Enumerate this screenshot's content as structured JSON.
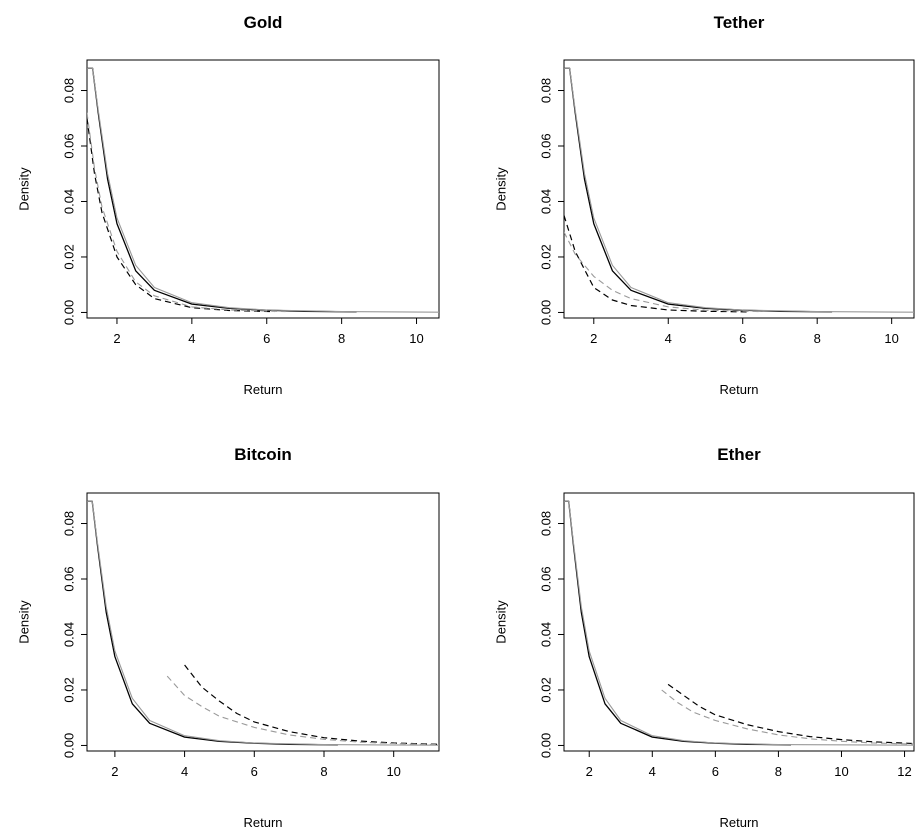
{
  "chart_data": [
    {
      "type": "line",
      "title": "Gold",
      "xlabel": "Return",
      "ylabel": "Density",
      "xlim": [
        1.2,
        10.6
      ],
      "ylim": [
        -0.002,
        0.091
      ],
      "xticks": [
        "2",
        "4",
        "6",
        "8",
        "10"
      ],
      "yticks": [
        "0.00",
        "0.02",
        "0.04",
        "0.06",
        "0.08"
      ],
      "grid": false,
      "series": [
        {
          "style": "solid-black",
          "x": [
            1.2,
            1.35,
            1.5,
            1.75,
            2,
            2.5,
            3,
            4,
            5,
            6,
            7,
            8.4
          ],
          "y": [
            0.088,
            0.088,
            0.072,
            0.048,
            0.032,
            0.015,
            0.008,
            0.003,
            0.0015,
            0.0008,
            0.0004,
            0.0002
          ]
        },
        {
          "style": "solid-gray",
          "x": [
            1.2,
            1.35,
            1.5,
            1.75,
            2,
            2.5,
            3,
            4,
            5,
            6,
            8,
            10.6
          ],
          "y": [
            0.088,
            0.088,
            0.073,
            0.05,
            0.034,
            0.017,
            0.009,
            0.0035,
            0.0017,
            0.0009,
            0.0003,
            0.0001
          ]
        },
        {
          "style": "dashed-black",
          "x": [
            1.2,
            1.4,
            1.6,
            2,
            2.5,
            3,
            4,
            5,
            6.2
          ],
          "y": [
            0.07,
            0.05,
            0.036,
            0.02,
            0.01,
            0.005,
            0.0017,
            0.0007,
            0.0003
          ]
        },
        {
          "style": "dashed-gray",
          "x": [
            1.2,
            1.4,
            1.6,
            2,
            2.5,
            3,
            4,
            5,
            6.5
          ],
          "y": [
            0.072,
            0.052,
            0.038,
            0.022,
            0.011,
            0.006,
            0.002,
            0.0009,
            0.0003
          ]
        }
      ]
    },
    {
      "type": "line",
      "title": "Tether",
      "xlabel": "Return",
      "ylabel": "Density",
      "xlim": [
        1.2,
        10.6
      ],
      "ylim": [
        -0.002,
        0.091
      ],
      "xticks": [
        "2",
        "4",
        "6",
        "8",
        "10"
      ],
      "yticks": [
        "0.00",
        "0.02",
        "0.04",
        "0.06",
        "0.08"
      ],
      "grid": false,
      "series": [
        {
          "style": "solid-black",
          "x": [
            1.2,
            1.35,
            1.5,
            1.75,
            2,
            2.5,
            3,
            4,
            5,
            6,
            7,
            8.4
          ],
          "y": [
            0.088,
            0.088,
            0.072,
            0.048,
            0.032,
            0.015,
            0.008,
            0.003,
            0.0015,
            0.0008,
            0.0004,
            0.0002
          ]
        },
        {
          "style": "solid-gray",
          "x": [
            1.2,
            1.35,
            1.5,
            1.75,
            2,
            2.5,
            3,
            4,
            5,
            6,
            8,
            10.6
          ],
          "y": [
            0.088,
            0.088,
            0.073,
            0.05,
            0.034,
            0.017,
            0.009,
            0.0035,
            0.0017,
            0.0009,
            0.0003,
            0.0001
          ]
        },
        {
          "style": "dashed-black",
          "x": [
            1.2,
            1.5,
            2,
            2.5,
            3,
            4,
            5,
            6.2
          ],
          "y": [
            0.035,
            0.022,
            0.009,
            0.0045,
            0.0025,
            0.0009,
            0.0004,
            0.0002
          ]
        },
        {
          "style": "dashed-gray",
          "x": [
            1.2,
            1.5,
            2,
            2.5,
            3,
            4,
            5,
            6.5
          ],
          "y": [
            0.029,
            0.021,
            0.013,
            0.008,
            0.005,
            0.002,
            0.0008,
            0.0003
          ]
        }
      ]
    },
    {
      "type": "line",
      "title": "Bitcoin",
      "xlabel": "Return",
      "ylabel": "Density",
      "xlim": [
        1.2,
        11.3
      ],
      "ylim": [
        -0.002,
        0.091
      ],
      "xticks": [
        "2",
        "4",
        "6",
        "8",
        "10"
      ],
      "yticks": [
        "0.00",
        "0.02",
        "0.04",
        "0.06",
        "0.08"
      ],
      "grid": false,
      "series": [
        {
          "style": "solid-black",
          "x": [
            1.2,
            1.35,
            1.5,
            1.75,
            2,
            2.5,
            3,
            4,
            5,
            6,
            7,
            8.4
          ],
          "y": [
            0.088,
            0.088,
            0.072,
            0.048,
            0.032,
            0.015,
            0.008,
            0.003,
            0.0015,
            0.0008,
            0.0004,
            0.0002
          ]
        },
        {
          "style": "solid-gray",
          "x": [
            1.2,
            1.35,
            1.5,
            1.75,
            2,
            2.5,
            3,
            4,
            5,
            6,
            8,
            11.3
          ],
          "y": [
            0.088,
            0.088,
            0.073,
            0.05,
            0.034,
            0.017,
            0.009,
            0.0035,
            0.0017,
            0.0009,
            0.0003,
            0.0001
          ]
        },
        {
          "style": "dashed-black",
          "x": [
            4.0,
            4.5,
            5,
            5.5,
            6,
            7,
            8,
            9,
            10,
            11.3
          ],
          "y": [
            0.029,
            0.021,
            0.016,
            0.0115,
            0.0085,
            0.005,
            0.0028,
            0.0016,
            0.0009,
            0.0004
          ]
        },
        {
          "style": "dashed-gray",
          "x": [
            3.5,
            4.0,
            4.5,
            5,
            6,
            7,
            8,
            9,
            10,
            11.3
          ],
          "y": [
            0.025,
            0.018,
            0.014,
            0.0105,
            0.0065,
            0.0038,
            0.0022,
            0.0012,
            0.0007,
            0.0003
          ]
        }
      ]
    },
    {
      "type": "line",
      "title": "Ether",
      "xlabel": "Return",
      "ylabel": "Density",
      "xlim": [
        1.2,
        12.3
      ],
      "ylim": [
        -0.002,
        0.091
      ],
      "xticks": [
        "2",
        "4",
        "6",
        "8",
        "10",
        "12"
      ],
      "yticks": [
        "0.00",
        "0.02",
        "0.04",
        "0.06",
        "0.08"
      ],
      "grid": false,
      "series": [
        {
          "style": "solid-black",
          "x": [
            1.2,
            1.35,
            1.5,
            1.75,
            2,
            2.5,
            3,
            4,
            5,
            6,
            7,
            8.4
          ],
          "y": [
            0.088,
            0.088,
            0.072,
            0.048,
            0.032,
            0.015,
            0.008,
            0.003,
            0.0015,
            0.0008,
            0.0004,
            0.0002
          ]
        },
        {
          "style": "solid-gray",
          "x": [
            1.2,
            1.35,
            1.5,
            1.75,
            2,
            2.5,
            3,
            4,
            5,
            6,
            8,
            12.3
          ],
          "y": [
            0.088,
            0.088,
            0.073,
            0.05,
            0.034,
            0.017,
            0.009,
            0.0035,
            0.0017,
            0.0009,
            0.0003,
            0.0001
          ]
        },
        {
          "style": "dashed-black",
          "x": [
            4.5,
            5,
            5.5,
            6,
            7,
            8,
            9,
            10,
            11,
            12.3
          ],
          "y": [
            0.022,
            0.018,
            0.014,
            0.011,
            0.0075,
            0.005,
            0.0032,
            0.0021,
            0.0013,
            0.0007
          ]
        },
        {
          "style": "dashed-gray",
          "x": [
            4.3,
            4.8,
            5.3,
            6,
            7,
            8,
            9,
            10,
            11,
            12.3
          ],
          "y": [
            0.02,
            0.0155,
            0.012,
            0.009,
            0.006,
            0.0038,
            0.0024,
            0.0015,
            0.0009,
            0.0005
          ]
        }
      ]
    }
  ]
}
